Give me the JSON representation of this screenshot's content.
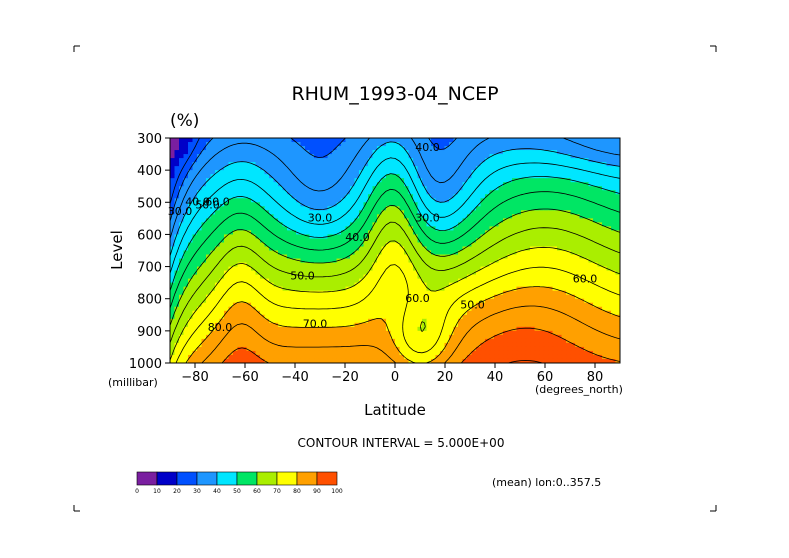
{
  "chart_data": {
    "type": "heatmap",
    "title": "RHUM_1993-04_NCEP",
    "units_label": "(%)",
    "ylabel": "Level",
    "y_units": "(millibar)",
    "xlabel": "Latitude",
    "x_units": "(degrees_north)",
    "x_ticks": [
      -80,
      -60,
      -40,
      -20,
      0,
      20,
      40,
      60,
      80
    ],
    "y_ticks": [
      300,
      400,
      500,
      600,
      700,
      800,
      900,
      1000
    ],
    "xlim": [
      -90,
      90
    ],
    "ylim": [
      1000,
      300
    ],
    "y_scale": "linear",
    "contour_interval_text": "CONTOUR INTERVAL = 5.000E+00",
    "footer_text": "(mean) lon:0..357.5",
    "colorbar": {
      "ticks": [
        0,
        10,
        20,
        30,
        40,
        50,
        60,
        70,
        80,
        90,
        100
      ],
      "colors": [
        "#7a1fa0",
        "#0000c8",
        "#0050ff",
        "#1e96ff",
        "#00e6ff",
        "#00e664",
        "#aaee00",
        "#ffff00",
        "#ffa000",
        "#ff5000",
        "#ff0000"
      ]
    },
    "contour_labels": [
      {
        "text": "30.0",
        "lat": -86,
        "lev": 540
      },
      {
        "text": "40.0",
        "lat": -79,
        "lev": 510
      },
      {
        "text": "50.0",
        "lat": -75,
        "lev": 520
      },
      {
        "text": "60.0",
        "lat": -71,
        "lev": 510
      },
      {
        "text": "30.0",
        "lat": -30,
        "lev": 560
      },
      {
        "text": "40.0",
        "lat": -15,
        "lev": 620
      },
      {
        "text": "50.0",
        "lat": -37,
        "lev": 740
      },
      {
        "text": "70.0",
        "lat": -32,
        "lev": 890
      },
      {
        "text": "40.0",
        "lat": 13,
        "lev": 340
      },
      {
        "text": "30.0",
        "lat": 13,
        "lev": 560
      },
      {
        "text": "60.0",
        "lat": 9,
        "lev": 810
      },
      {
        "text": "50.0",
        "lat": 31,
        "lev": 830
      },
      {
        "text": "60.0",
        "lat": 76,
        "lev": 750
      },
      {
        "text": "80.0",
        "lat": -70,
        "lev": 900
      }
    ]
  }
}
